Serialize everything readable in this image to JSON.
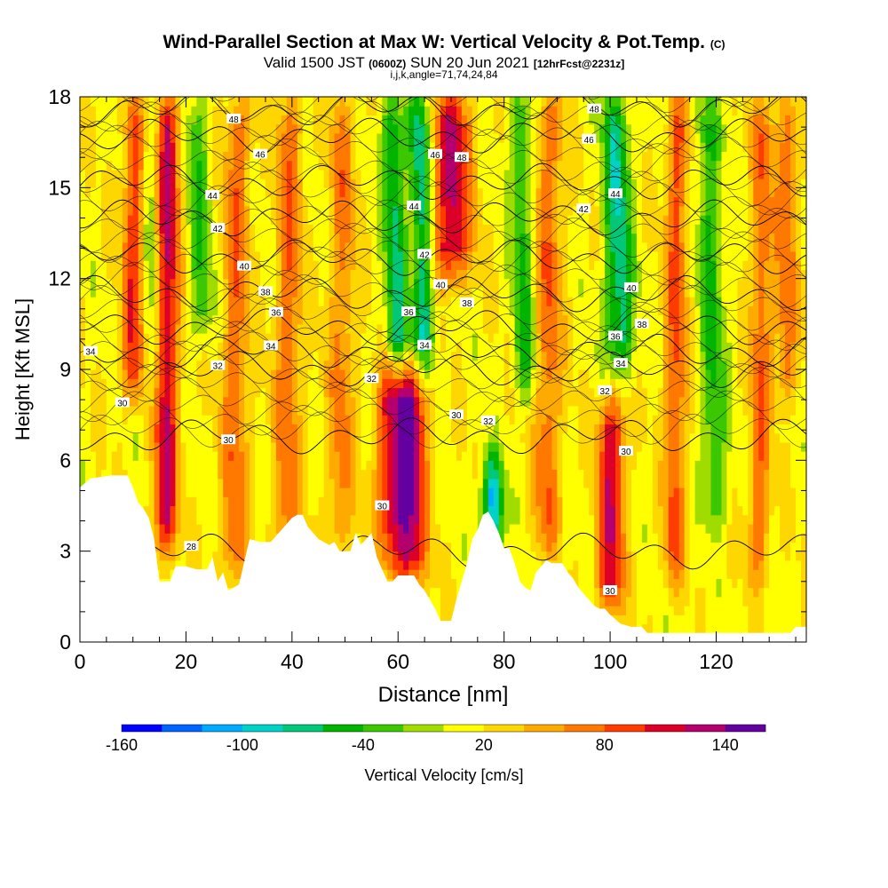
{
  "header": {
    "title": "Wind-Parallel Section at Max W: Vertical Velocity & Pot.Temp.",
    "copyright": "(C)",
    "subtitle_a": "Valid 1500 JST",
    "subtitle_b": "(0600Z)",
    "subtitle_c": "SUN 20 Jun 2021",
    "subtitle_d": "[12hrFcst@2231z]",
    "subtitle2": "i,j,k,angle=71,74,24,84"
  },
  "chart_data": {
    "type": "heatmap",
    "title": "Wind-Parallel Section at Max W: Vertical Velocity & Pot.Temp.",
    "xlabel": "Distance [nm]",
    "ylabel": "Height [Kft MSL]",
    "xlim": [
      0,
      137
    ],
    "ylim": [
      0,
      18
    ],
    "x_ticks": [
      "0",
      "20",
      "40",
      "60",
      "80",
      "100",
      "120"
    ],
    "y_ticks": [
      "0",
      "3",
      "6",
      "9",
      "12",
      "15",
      "18"
    ],
    "colorbar": {
      "label": "Vertical Velocity [cm/s]",
      "tick_labels": [
        "-160",
        "-100",
        "-40",
        "20",
        "80",
        "140"
      ],
      "tick_values": [
        -160,
        -100,
        -40,
        20,
        80,
        140
      ],
      "range": [
        -160,
        160
      ],
      "colors": [
        "#0000ff",
        "#0064ff",
        "#00aaff",
        "#00d2c8",
        "#00c878",
        "#00b400",
        "#3cc800",
        "#a0dc00",
        "#ffff00",
        "#ffd700",
        "#ffaa00",
        "#ff7800",
        "#ff3c00",
        "#dc0028",
        "#b4006e",
        "#6400a0"
      ]
    },
    "terrain": [
      [
        0,
        5.1
      ],
      [
        2,
        5.4
      ],
      [
        6,
        5.5
      ],
      [
        9,
        5.5
      ],
      [
        10,
        5.1
      ],
      [
        11,
        4.6
      ],
      [
        12,
        4.4
      ],
      [
        13,
        4.1
      ],
      [
        14,
        3.4
      ],
      [
        15,
        2.0
      ],
      [
        17,
        2.0
      ],
      [
        18,
        2.5
      ],
      [
        20,
        2.5
      ],
      [
        22,
        2.4
      ],
      [
        24,
        2.4
      ],
      [
        25,
        2.8
      ],
      [
        26,
        2.0
      ],
      [
        27,
        2.3
      ],
      [
        28,
        1.7
      ],
      [
        30,
        1.9
      ],
      [
        32,
        3.4
      ],
      [
        34,
        3.3
      ],
      [
        36,
        3.3
      ],
      [
        38,
        3.7
      ],
      [
        40,
        4.1
      ],
      [
        41,
        4.2
      ],
      [
        42,
        4.2
      ],
      [
        43,
        3.8
      ],
      [
        45,
        3.4
      ],
      [
        47,
        3.2
      ],
      [
        48,
        3.3
      ],
      [
        49,
        3.0
      ],
      [
        51,
        3.0
      ],
      [
        52,
        3.6
      ],
      [
        53,
        3.2
      ],
      [
        54,
        3.4
      ],
      [
        55,
        3.6
      ],
      [
        56,
        2.8
      ],
      [
        57,
        2.4
      ],
      [
        58,
        2.0
      ],
      [
        59,
        2.0
      ],
      [
        60,
        2.2
      ],
      [
        61,
        2.2
      ],
      [
        62,
        2.2
      ],
      [
        63,
        2.2
      ],
      [
        64,
        1.9
      ],
      [
        65,
        1.7
      ],
      [
        66,
        1.4
      ],
      [
        67,
        1.1
      ],
      [
        68,
        0.7
      ],
      [
        70,
        0.7
      ],
      [
        71,
        1.4
      ],
      [
        72,
        2.0
      ],
      [
        73,
        2.6
      ],
      [
        74,
        3.4
      ],
      [
        75,
        3.7
      ],
      [
        76,
        4.2
      ],
      [
        77,
        4.3
      ],
      [
        78,
        4.0
      ],
      [
        79,
        3.6
      ],
      [
        80,
        3.1
      ],
      [
        81,
        3.1
      ],
      [
        82,
        2.6
      ],
      [
        83,
        2.0
      ],
      [
        84,
        1.8
      ],
      [
        85,
        1.7
      ],
      [
        86,
        2.3
      ],
      [
        88,
        2.7
      ],
      [
        89,
        2.6
      ],
      [
        91,
        2.6
      ],
      [
        92,
        2.3
      ],
      [
        93,
        2.1
      ],
      [
        94,
        1.8
      ],
      [
        95,
        1.6
      ],
      [
        96,
        1.4
      ],
      [
        97,
        1.2
      ],
      [
        98,
        1.1
      ],
      [
        99,
        1.1
      ],
      [
        100,
        0.9
      ],
      [
        102,
        0.6
      ],
      [
        104,
        0.5
      ],
      [
        106,
        0.5
      ],
      [
        107,
        0.3
      ],
      [
        108,
        0.3
      ],
      [
        114,
        0.3
      ],
      [
        115,
        0.3
      ],
      [
        124,
        0.3
      ],
      [
        125,
        0.3
      ],
      [
        134,
        0.3
      ],
      [
        135,
        0.5
      ],
      [
        137,
        0.5
      ]
    ],
    "updraft_columns": [
      {
        "x": 10,
        "w": 2.2,
        "z0": 8,
        "z1": 18,
        "value": 80
      },
      {
        "x": 16,
        "w": 2.2,
        "z0": 3,
        "z1": 18,
        "value": 110
      },
      {
        "x": 29,
        "w": 2.5,
        "z0": 2,
        "z1": 18,
        "value": 60
      },
      {
        "x": 39,
        "w": 2.5,
        "z0": 3,
        "z1": 18,
        "value": 60
      },
      {
        "x": 49,
        "w": 2.5,
        "z0": 3,
        "z1": 18,
        "value": 50
      },
      {
        "x": 58,
        "w": 2.5,
        "z0": 3,
        "z1": 9,
        "value": 80
      },
      {
        "x": 62,
        "w": 3.0,
        "z0": 2,
        "z1": 9,
        "value": 130
      },
      {
        "x": 70,
        "w": 3.5,
        "z0": 12,
        "z1": 18,
        "value": 110
      },
      {
        "x": 88,
        "w": 2.5,
        "z0": 3,
        "z1": 18,
        "value": 60
      },
      {
        "x": 100,
        "w": 2.5,
        "z0": 1,
        "z1": 8,
        "value": 100
      },
      {
        "x": 112,
        "w": 2.0,
        "z0": 2,
        "z1": 18,
        "value": 70
      },
      {
        "x": 128,
        "w": 2.0,
        "z0": 2,
        "z1": 18,
        "value": 60
      },
      {
        "x": 133,
        "w": 2.0,
        "z0": 8,
        "z1": 18,
        "value": 60
      }
    ],
    "downdraft_columns": [
      {
        "x": 14,
        "w": 2.0,
        "z0": 8,
        "z1": 18,
        "value": -40
      },
      {
        "x": 23,
        "w": 2.2,
        "z0": 10,
        "z1": 18,
        "value": -50
      },
      {
        "x": 60,
        "w": 2.0,
        "z0": 9,
        "z1": 18,
        "value": -80
      },
      {
        "x": 65,
        "w": 2.0,
        "z0": 9,
        "z1": 18,
        "value": -90
      },
      {
        "x": 78,
        "w": 2.0,
        "z0": 3,
        "z1": 6,
        "value": -120
      },
      {
        "x": 84,
        "w": 2.0,
        "z0": 8,
        "z1": 18,
        "value": -60
      },
      {
        "x": 102,
        "w": 2.5,
        "z0": 9,
        "z1": 18,
        "value": -90
      },
      {
        "x": 120,
        "w": 2.2,
        "z0": 4,
        "z1": 18,
        "value": -60
      }
    ],
    "theta_contours": [
      {
        "level": 28,
        "base_height": 3.0,
        "label": "28",
        "label_x": 21
      },
      {
        "level": 30,
        "base_height": 6.8,
        "label": "30",
        "label_x": 28
      },
      {
        "level": 32,
        "base_height": 9.0,
        "label": "32",
        "label_x": 26
      },
      {
        "level": 34,
        "base_height": 9.6,
        "label": "34",
        "label_x": 36
      },
      {
        "level": 36,
        "base_height": 10.4,
        "label": "36",
        "label_x": 37
      },
      {
        "level": 38,
        "base_height": 11.5,
        "label": "38",
        "label_x": 35
      },
      {
        "level": 40,
        "base_height": 12.7,
        "label": "40",
        "label_x": 31
      },
      {
        "level": 42,
        "base_height": 14.0,
        "label": "42",
        "label_x": 26
      },
      {
        "level": 44,
        "base_height": 15.2,
        "label": "44",
        "label_x": 25
      },
      {
        "level": 46,
        "base_height": 16.7,
        "label": "46",
        "label_x": 34
      },
      {
        "level": 48,
        "base_height": 17.6,
        "label": "48",
        "label_x": 29
      }
    ],
    "contour_labels_extra": [
      {
        "text": "34",
        "x": 2,
        "y": 9.6
      },
      {
        "text": "30",
        "x": 8,
        "y": 7.9
      },
      {
        "text": "30",
        "x": 57,
        "y": 4.5
      },
      {
        "text": "32",
        "x": 55,
        "y": 8.7
      },
      {
        "text": "36",
        "x": 62,
        "y": 10.9
      },
      {
        "text": "34",
        "x": 65,
        "y": 9.8
      },
      {
        "text": "44",
        "x": 63,
        "y": 14.4
      },
      {
        "text": "42",
        "x": 65,
        "y": 12.8
      },
      {
        "text": "40",
        "x": 68,
        "y": 11.8
      },
      {
        "text": "38",
        "x": 73,
        "y": 11.2
      },
      {
        "text": "46",
        "x": 67,
        "y": 16.1
      },
      {
        "text": "48",
        "x": 72,
        "y": 16.0
      },
      {
        "text": "30",
        "x": 71,
        "y": 7.5
      },
      {
        "text": "32",
        "x": 77,
        "y": 7.3
      },
      {
        "text": "48",
        "x": 97,
        "y": 17.6
      },
      {
        "text": "46",
        "x": 96,
        "y": 16.6
      },
      {
        "text": "44",
        "x": 101,
        "y": 14.8
      },
      {
        "text": "42",
        "x": 95,
        "y": 14.3
      },
      {
        "text": "40",
        "x": 104,
        "y": 11.7
      },
      {
        "text": "38",
        "x": 106,
        "y": 10.5
      },
      {
        "text": "36",
        "x": 101,
        "y": 10.1
      },
      {
        "text": "34",
        "x": 102,
        "y": 9.2
      },
      {
        "text": "32",
        "x": 99,
        "y": 8.3
      },
      {
        "text": "30",
        "x": 103,
        "y": 6.3
      },
      {
        "text": "30",
        "x": 100,
        "y": 1.7
      }
    ]
  }
}
